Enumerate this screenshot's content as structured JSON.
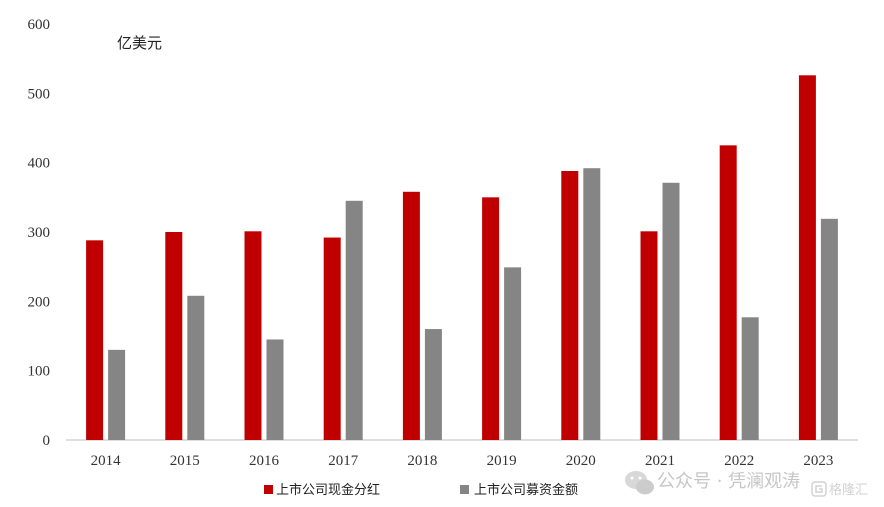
{
  "chart_data": {
    "type": "bar",
    "unit_label": "亿美元",
    "categories": [
      "2014",
      "2015",
      "2016",
      "2017",
      "2018",
      "2019",
      "2020",
      "2021",
      "2022",
      "2023"
    ],
    "series": [
      {
        "name": "上市公司现金分红",
        "color": "#c00000",
        "values": [
          288,
          300,
          301,
          292,
          358,
          350,
          388,
          301,
          425,
          526
        ]
      },
      {
        "name": "上市公司募资金额",
        "color": "#858585",
        "values": [
          130,
          208,
          145,
          345,
          160,
          249,
          392,
          371,
          177,
          319
        ]
      }
    ],
    "ylim": [
      0,
      600
    ],
    "yticks": [
      0,
      100,
      200,
      300,
      400,
      500,
      600
    ],
    "grid": false,
    "legend_position": "bottom"
  },
  "watermark": {
    "text": "公众号 · 凭澜观涛",
    "badge": "格隆汇"
  }
}
